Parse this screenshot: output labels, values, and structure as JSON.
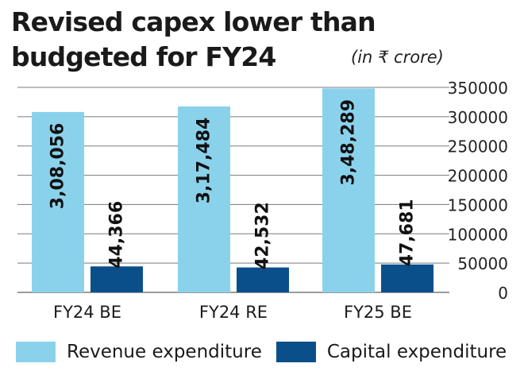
{
  "title_line1": "Revised capex lower than",
  "title_line2": "budgeted for FY24",
  "unit_label": "(in ₹ crore)",
  "colors": {
    "revenue": "#8ad2ec",
    "capital": "#0b4f8a",
    "grid": "#7a7a7a"
  },
  "legend": {
    "revenue": "Revenue expenditure",
    "capital": "Capital expenditure"
  },
  "chart_data": {
    "type": "bar",
    "categories": [
      "FY24 BE",
      "FY24 RE",
      "FY25 BE"
    ],
    "series": [
      {
        "name": "Revenue expenditure",
        "values": [
          308056,
          317484,
          348289
        ],
        "labels": [
          "3,08,056",
          "3,17,484",
          "3,48,289"
        ]
      },
      {
        "name": "Capital expenditure",
        "values": [
          44366,
          42532,
          47681
        ],
        "labels": [
          "44,366",
          "42,532",
          "47,681"
        ]
      }
    ],
    "ylim": [
      0,
      350000
    ],
    "yticks": [
      0,
      50000,
      100000,
      150000,
      200000,
      250000,
      300000,
      350000
    ],
    "ytick_labels": [
      "0",
      "50000",
      "100000",
      "150000",
      "200000",
      "250000",
      "300000",
      "350000"
    ],
    "y_axis_side": "right",
    "grid": true,
    "legend_position": "bottom"
  }
}
